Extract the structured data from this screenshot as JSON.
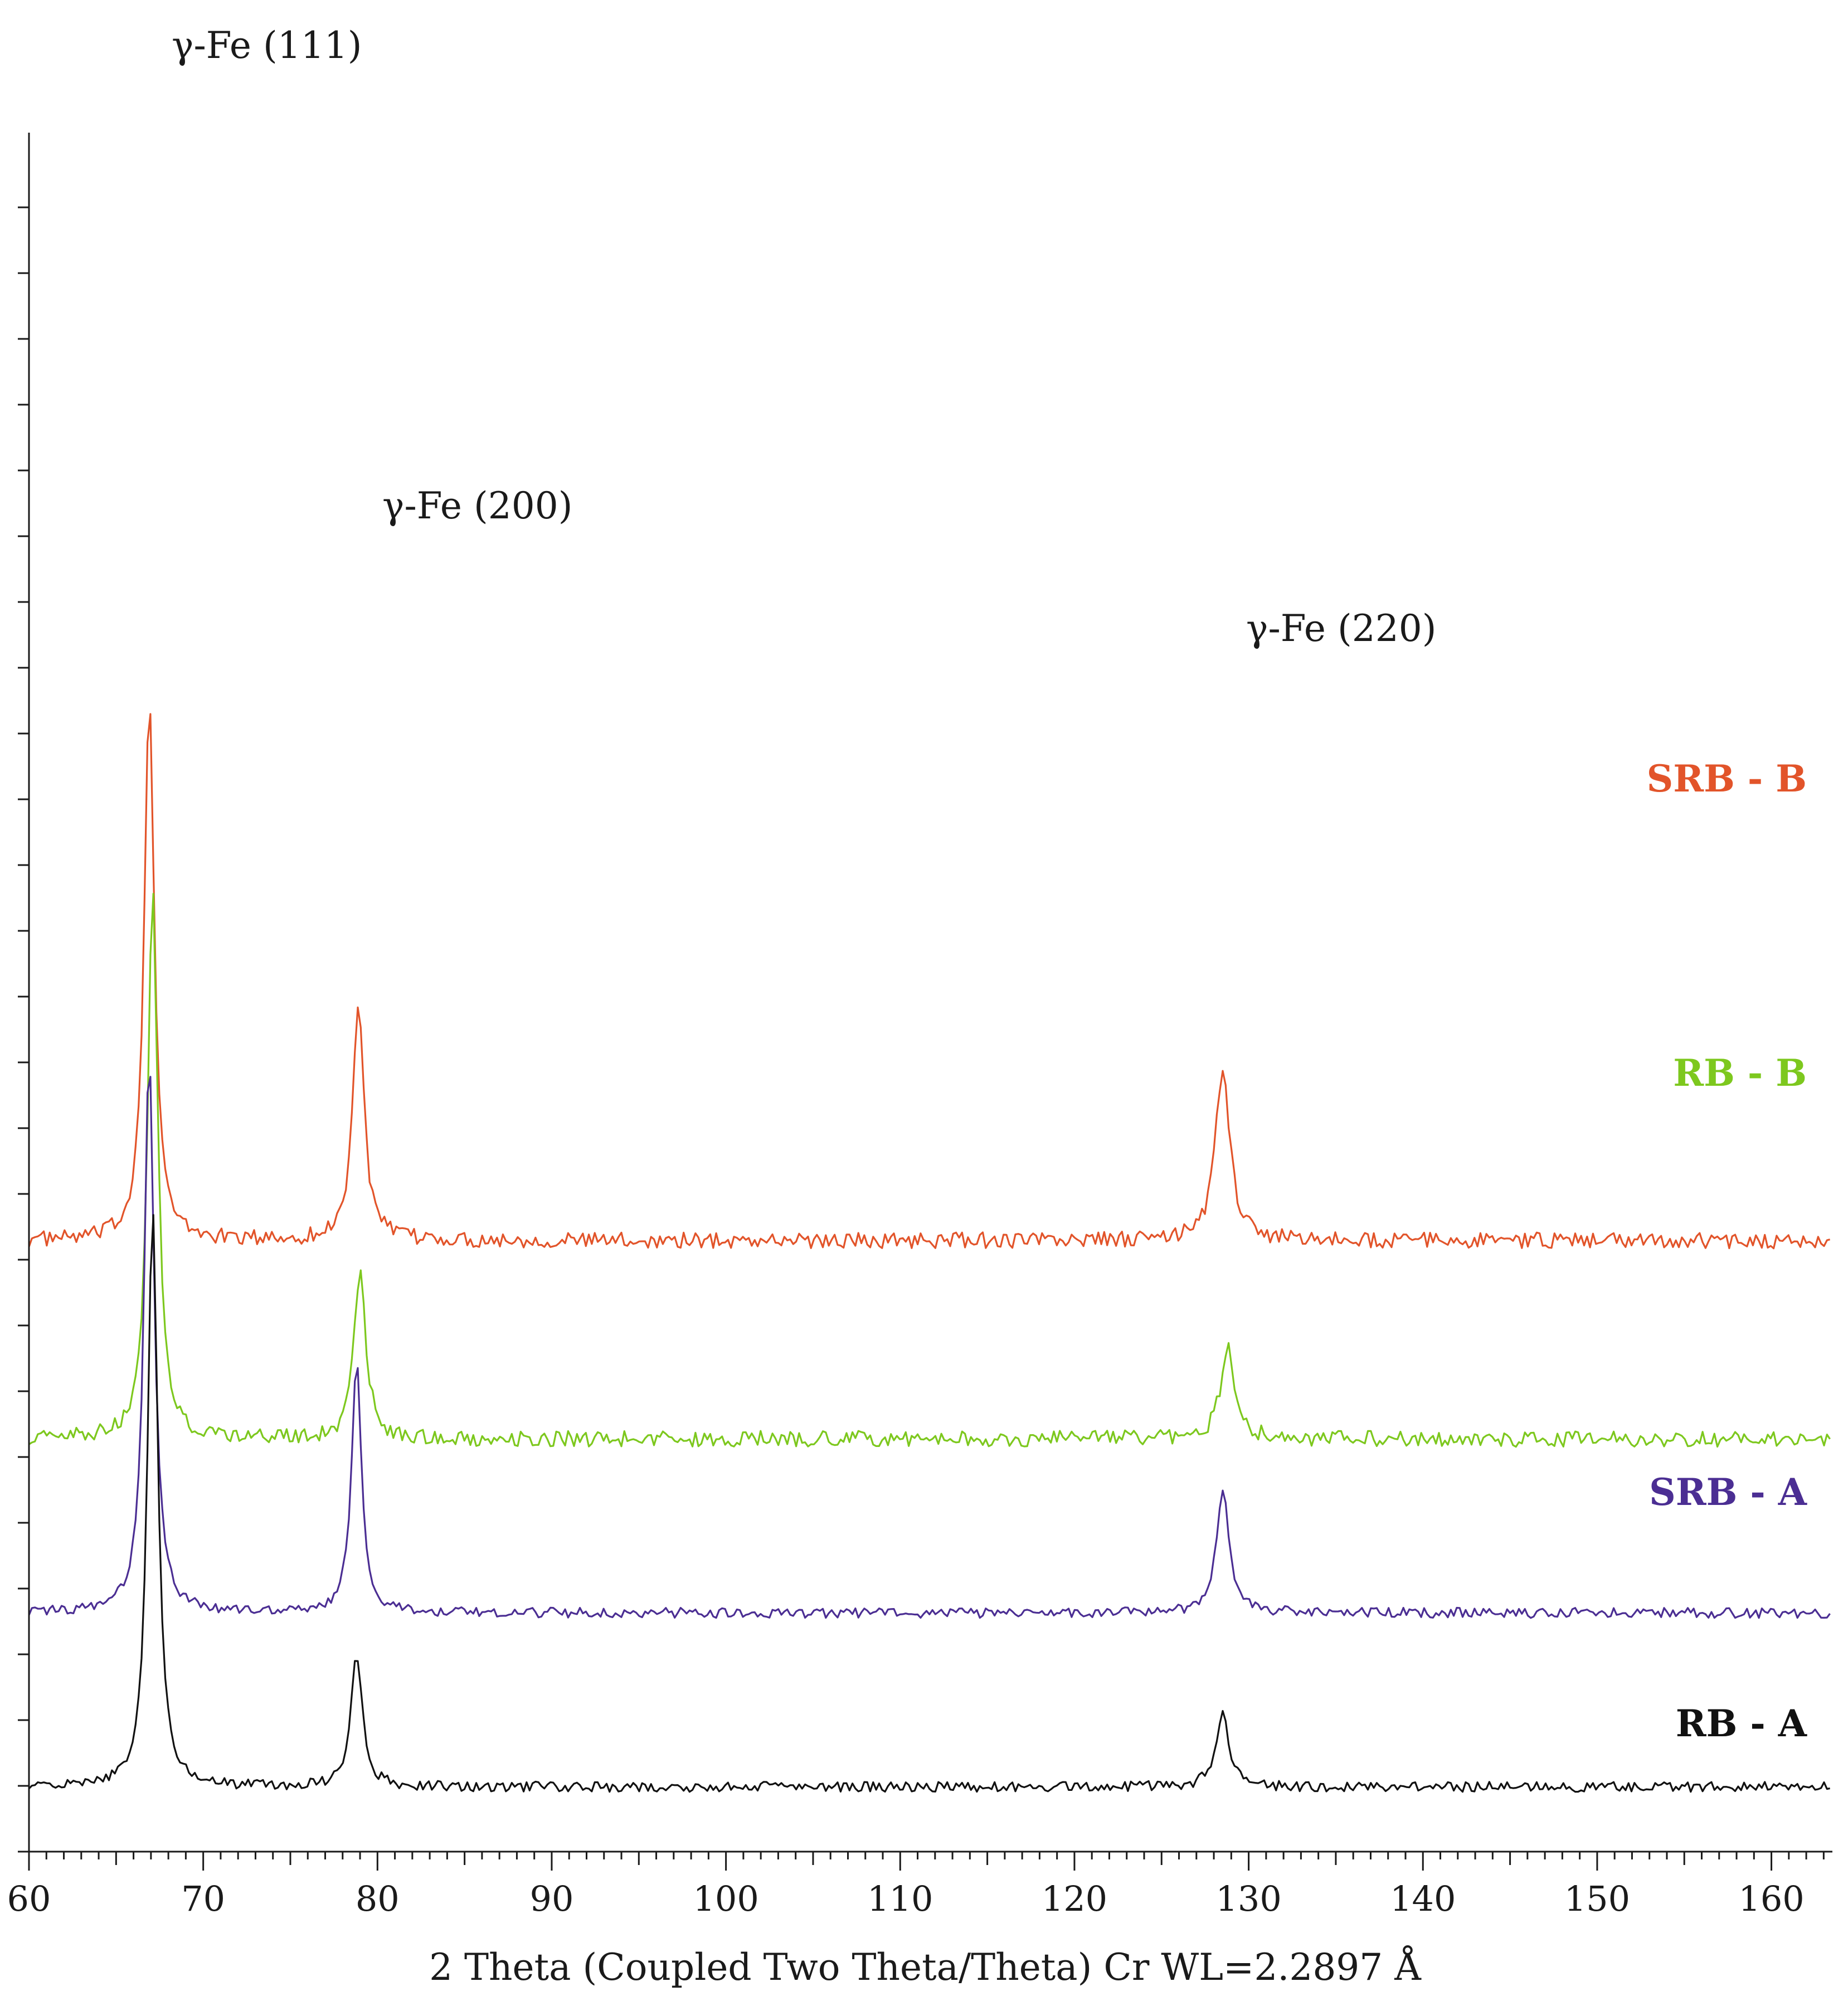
{
  "chart_data": {
    "type": "line",
    "xlabel": "2 Theta (Coupled Two Theta/Theta) Cr WL=2.2897 Å",
    "ylabel": "",
    "xlim": [
      60,
      163.5
    ],
    "x_ticks": [
      "60",
      "70",
      "80",
      "90",
      "100",
      "110",
      "120",
      "130",
      "140",
      "150",
      "160"
    ],
    "y_tick_labels": "none",
    "grid": false,
    "legend": "inline labels at right",
    "peak_annotations": [
      {
        "label": "γ-Fe (111)",
        "x": 66.9
      },
      {
        "label": "γ-Fe (200)",
        "x": 78.9
      },
      {
        "label": "γ-Fe (220)",
        "x": 128.5
      }
    ],
    "series": [
      {
        "name": "SRB - B",
        "color": "#e2542a",
        "offset": 3.8,
        "noise": 0.055,
        "peaks": [
          {
            "x": 66.9,
            "h": 3.8,
            "w": 0.35
          },
          {
            "x": 78.9,
            "h": 1.65,
            "w": 0.4
          },
          {
            "x": 128.5,
            "h": 1.2,
            "w": 0.5
          }
        ]
      },
      {
        "name": "RB - B",
        "color": "#7dc81e",
        "offset": 2.42,
        "noise": 0.055,
        "peaks": [
          {
            "x": 67.1,
            "h": 3.85,
            "w": 0.35
          },
          {
            "x": 79.0,
            "h": 1.2,
            "w": 0.4
          },
          {
            "x": 128.8,
            "h": 0.63,
            "w": 0.5
          }
        ]
      },
      {
        "name": "SRB - A",
        "color": "#4b2e93",
        "offset": 1.21,
        "noise": 0.035,
        "peaks": [
          {
            "x": 66.9,
            "h": 3.9,
            "w": 0.35
          },
          {
            "x": 78.8,
            "h": 1.75,
            "w": 0.35
          },
          {
            "x": 128.5,
            "h": 0.85,
            "w": 0.45
          }
        ]
      },
      {
        "name": "RB - A",
        "color": "#111111",
        "offset": 0.0,
        "noise": 0.035,
        "peaks": [
          {
            "x": 67.1,
            "h": 4.0,
            "w": 0.35
          },
          {
            "x": 78.8,
            "h": 0.9,
            "w": 0.4
          },
          {
            "x": 128.5,
            "h": 0.52,
            "w": 0.45
          }
        ]
      }
    ]
  }
}
